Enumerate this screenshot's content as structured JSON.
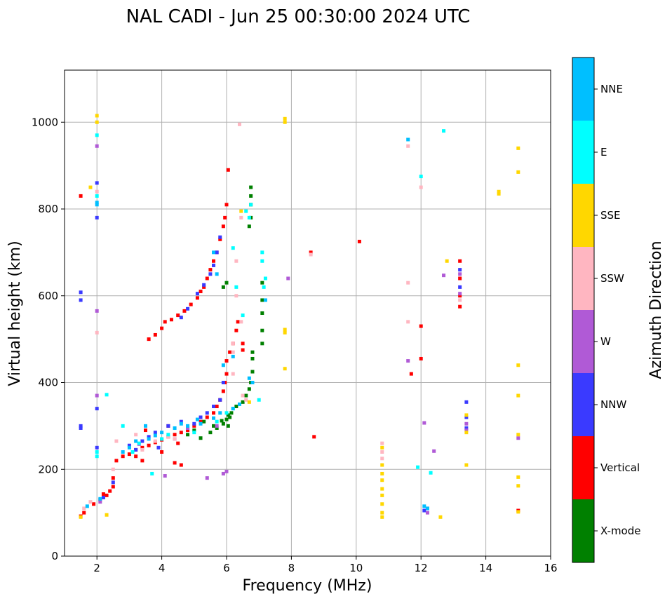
{
  "chart_data": {
    "type": "scatter",
    "title": "NAL CADI - Jun 25 00:30:00 2024 UTC",
    "xlabel": "Frequency (MHz)",
    "ylabel": "Virtual height (km)",
    "xlim": [
      1,
      16
    ],
    "ylim": [
      0,
      1120
    ],
    "xticks": [
      2,
      4,
      6,
      8,
      10,
      12,
      14,
      16
    ],
    "yticks": [
      0,
      200,
      400,
      600,
      800,
      1000
    ],
    "grid": true,
    "colorbar": {
      "label": "Azimuth Direction",
      "categories": [
        "X-mode",
        "Vertical",
        "NNW",
        "W",
        "SSW",
        "SSE",
        "E",
        "NNE"
      ],
      "colors": [
        "#008000",
        "#ff0000",
        "#3a3aff",
        "#b05ad6",
        "#ffb6c1",
        "#ffd700",
        "#00ffff",
        "#00bfff"
      ]
    },
    "series": [
      {
        "name": "X-mode",
        "points": [
          [
            5.2,
            272
          ],
          [
            5.5,
            285
          ],
          [
            5.7,
            295
          ],
          [
            5.9,
            305
          ],
          [
            6.0,
            315
          ],
          [
            6.15,
            330
          ],
          [
            6.3,
            345
          ],
          [
            6.5,
            355
          ],
          [
            6.6,
            370
          ],
          [
            6.7,
            385
          ],
          [
            6.75,
            400
          ],
          [
            6.8,
            425
          ],
          [
            6.8,
            455
          ],
          [
            6.8,
            470
          ],
          [
            5.9,
            620
          ],
          [
            6.0,
            630
          ],
          [
            6.7,
            760
          ],
          [
            6.75,
            780
          ],
          [
            6.75,
            810
          ],
          [
            6.75,
            830
          ],
          [
            6.75,
            850
          ],
          [
            7.1,
            490
          ],
          [
            7.1,
            520
          ],
          [
            7.1,
            560
          ],
          [
            7.1,
            590
          ],
          [
            7.1,
            630
          ],
          [
            5.6,
            300
          ],
          [
            5.0,
            290
          ],
          [
            4.8,
            280
          ],
          [
            5.3,
            310
          ],
          [
            6.05,
            325
          ],
          [
            5.85,
            312
          ],
          [
            6.05,
            300
          ],
          [
            6.1,
            320
          ]
        ]
      },
      {
        "name": "Vertical",
        "points": [
          [
            1.5,
            92
          ],
          [
            1.6,
            100
          ],
          [
            1.9,
            120
          ],
          [
            2.1,
            130
          ],
          [
            2.3,
            140
          ],
          [
            2.4,
            150
          ],
          [
            2.5,
            160
          ],
          [
            2.5,
            180
          ],
          [
            2.6,
            220
          ],
          [
            2.8,
            230
          ],
          [
            3.0,
            235
          ],
          [
            3.2,
            245
          ],
          [
            3.4,
            250
          ],
          [
            3.6,
            255
          ],
          [
            3.8,
            262
          ],
          [
            4.0,
            268
          ],
          [
            4.2,
            275
          ],
          [
            4.4,
            280
          ],
          [
            4.6,
            285
          ],
          [
            4.8,
            290
          ],
          [
            5.0,
            300
          ],
          [
            5.2,
            310
          ],
          [
            5.4,
            320
          ],
          [
            5.6,
            330
          ],
          [
            5.7,
            345
          ],
          [
            5.8,
            360
          ],
          [
            5.9,
            380
          ],
          [
            5.95,
            400
          ],
          [
            6.0,
            420
          ],
          [
            6.0,
            450
          ],
          [
            6.1,
            470
          ],
          [
            6.2,
            490
          ],
          [
            6.3,
            520
          ],
          [
            6.35,
            540
          ],
          [
            3.6,
            500
          ],
          [
            3.8,
            510
          ],
          [
            4.0,
            525
          ],
          [
            4.1,
            540
          ],
          [
            4.3,
            545
          ],
          [
            4.5,
            555
          ],
          [
            4.7,
            565
          ],
          [
            4.9,
            580
          ],
          [
            5.1,
            595
          ],
          [
            5.2,
            610
          ],
          [
            5.3,
            620
          ],
          [
            5.4,
            640
          ],
          [
            5.5,
            660
          ],
          [
            5.6,
            680
          ],
          [
            5.7,
            700
          ],
          [
            5.8,
            730
          ],
          [
            5.9,
            760
          ],
          [
            5.95,
            780
          ],
          [
            6.0,
            810
          ],
          [
            6.05,
            890
          ],
          [
            3.2,
            230
          ],
          [
            3.4,
            220
          ],
          [
            4.5,
            260
          ],
          [
            4.0,
            240
          ],
          [
            1.5,
            830
          ],
          [
            8.7,
            275
          ],
          [
            8.6,
            700
          ],
          [
            10.1,
            725
          ],
          [
            12.0,
            530
          ],
          [
            12.0,
            455
          ],
          [
            11.7,
            420
          ],
          [
            13.2,
            680
          ],
          [
            13.2,
            640
          ],
          [
            13.2,
            600
          ],
          [
            13.2,
            575
          ],
          [
            15.0,
            105
          ],
          [
            6.5,
            490
          ],
          [
            6.5,
            475
          ],
          [
            4.6,
            210
          ],
          [
            4.4,
            215
          ],
          [
            2.2,
            143
          ],
          [
            3.5,
            290
          ],
          [
            4.2,
            300
          ]
        ]
      },
      {
        "name": "NNW",
        "points": [
          [
            1.5,
            295
          ],
          [
            1.5,
            300
          ],
          [
            1.5,
            590
          ],
          [
            1.5,
            608
          ],
          [
            2.0,
            340
          ],
          [
            2.0,
            250
          ],
          [
            2.0,
            780
          ],
          [
            2.0,
            860
          ],
          [
            2.2,
            135
          ],
          [
            2.5,
            170
          ],
          [
            3.0,
            255
          ],
          [
            3.2,
            245
          ],
          [
            3.4,
            265
          ],
          [
            3.6,
            275
          ],
          [
            3.8,
            285
          ],
          [
            4.2,
            300
          ],
          [
            4.6,
            310
          ],
          [
            4.8,
            295
          ],
          [
            5.0,
            305
          ],
          [
            5.2,
            320
          ],
          [
            5.4,
            330
          ],
          [
            5.6,
            345
          ],
          [
            5.8,
            360
          ],
          [
            5.9,
            400
          ],
          [
            5.1,
            605
          ],
          [
            5.3,
            625
          ],
          [
            5.5,
            650
          ],
          [
            5.6,
            670
          ],
          [
            5.7,
            700
          ],
          [
            5.8,
            735
          ],
          [
            4.8,
            570
          ],
          [
            4.6,
            550
          ],
          [
            13.4,
            355
          ],
          [
            13.4,
            320
          ],
          [
            13.4,
            295
          ],
          [
            12.1,
            105
          ],
          [
            13.2,
            660
          ],
          [
            13.2,
            620
          ],
          [
            3.9,
            250
          ],
          [
            4.4,
            270
          ]
        ]
      },
      {
        "name": "W",
        "points": [
          [
            2.0,
            945
          ],
          [
            2.0,
            565
          ],
          [
            2.0,
            370
          ],
          [
            2.1,
            125
          ],
          [
            4.1,
            185
          ],
          [
            5.4,
            180
          ],
          [
            5.9,
            190
          ],
          [
            6.0,
            195
          ],
          [
            7.9,
            640
          ],
          [
            11.6,
            450
          ],
          [
            12.2,
            110
          ],
          [
            12.2,
            100
          ],
          [
            12.1,
            307
          ],
          [
            12.4,
            242
          ],
          [
            12.7,
            647
          ],
          [
            13.4,
            305
          ],
          [
            13.4,
            290
          ],
          [
            13.2,
            650
          ],
          [
            13.2,
            605
          ],
          [
            15.0,
            272
          ],
          [
            3.3,
            258
          ],
          [
            4.8,
            295
          ],
          [
            5.7,
            300
          ]
        ]
      },
      {
        "name": "SSW",
        "points": [
          [
            1.6,
            110
          ],
          [
            1.8,
            125
          ],
          [
            2.0,
            840
          ],
          [
            2.0,
            515
          ],
          [
            2.6,
            265
          ],
          [
            2.5,
            200
          ],
          [
            3.4,
            245
          ],
          [
            3.8,
            265
          ],
          [
            4.2,
            275
          ],
          [
            4.4,
            270
          ],
          [
            6.2,
            490
          ],
          [
            6.2,
            470
          ],
          [
            6.3,
            680
          ],
          [
            6.4,
            995
          ],
          [
            6.45,
            780
          ],
          [
            6.45,
            540
          ],
          [
            6.2,
            420
          ],
          [
            8.6,
            695
          ],
          [
            11.6,
            945
          ],
          [
            11.6,
            630
          ],
          [
            11.6,
            540
          ],
          [
            12.0,
            850
          ],
          [
            10.8,
            260
          ],
          [
            10.8,
            240
          ],
          [
            10.8,
            225
          ],
          [
            13.2,
            590
          ],
          [
            3.2,
            280
          ],
          [
            6.5,
            370
          ],
          [
            6.3,
            600
          ],
          [
            6.6,
            360
          ]
        ]
      },
      {
        "name": "SSE",
        "points": [
          [
            1.5,
            90
          ],
          [
            1.8,
            850
          ],
          [
            2.0,
            1000
          ],
          [
            2.0,
            1015
          ],
          [
            2.3,
            95
          ],
          [
            7.8,
            1000
          ],
          [
            7.8,
            1008
          ],
          [
            7.8,
            515
          ],
          [
            7.8,
            522
          ],
          [
            7.8,
            432
          ],
          [
            10.8,
            90
          ],
          [
            10.8,
            100
          ],
          [
            10.8,
            120
          ],
          [
            10.8,
            140
          ],
          [
            10.8,
            155
          ],
          [
            10.8,
            175
          ],
          [
            10.8,
            190
          ],
          [
            10.8,
            210
          ],
          [
            10.8,
            250
          ],
          [
            12.6,
            90
          ],
          [
            12.8,
            680
          ],
          [
            13.4,
            210
          ],
          [
            13.4,
            285
          ],
          [
            13.4,
            325
          ],
          [
            14.4,
            840
          ],
          [
            14.4,
            835
          ],
          [
            15.0,
            940
          ],
          [
            15.0,
            885
          ],
          [
            15.0,
            440
          ],
          [
            15.0,
            370
          ],
          [
            15.0,
            280
          ],
          [
            15.0,
            182
          ],
          [
            15.0,
            162
          ],
          [
            15.0,
            102
          ],
          [
            6.45,
            795
          ],
          [
            6.7,
            355
          ]
        ]
      },
      {
        "name": "E",
        "points": [
          [
            2.0,
            970
          ],
          [
            2.0,
            830
          ],
          [
            2.0,
            240
          ],
          [
            2.0,
            230
          ],
          [
            2.3,
            372
          ],
          [
            2.8,
            300
          ],
          [
            3.3,
            260
          ],
          [
            3.7,
            190
          ],
          [
            4.0,
            270
          ],
          [
            4.2,
            280
          ],
          [
            6.2,
            710
          ],
          [
            6.3,
            620
          ],
          [
            6.5,
            555
          ],
          [
            6.6,
            795
          ],
          [
            6.7,
            780
          ],
          [
            6.75,
            810
          ],
          [
            7.1,
            700
          ],
          [
            7.1,
            680
          ],
          [
            7.15,
            620
          ],
          [
            7.2,
            640
          ],
          [
            7.0,
            360
          ],
          [
            5.7,
            310
          ],
          [
            5.0,
            285
          ],
          [
            6.0,
            330
          ],
          [
            12.0,
            875
          ],
          [
            12.7,
            980
          ],
          [
            12.3,
            192
          ],
          [
            11.9,
            205
          ],
          [
            3.1,
            240
          ],
          [
            6.2,
            340
          ]
        ]
      },
      {
        "name": "NNE",
        "points": [
          [
            1.7,
            115
          ],
          [
            2.0,
            810
          ],
          [
            2.0,
            815
          ],
          [
            2.1,
            132
          ],
          [
            2.8,
            240
          ],
          [
            3.0,
            250
          ],
          [
            3.2,
            265
          ],
          [
            3.6,
            270
          ],
          [
            3.8,
            278
          ],
          [
            4.0,
            285
          ],
          [
            4.4,
            295
          ],
          [
            4.8,
            300
          ],
          [
            5.2,
            305
          ],
          [
            5.6,
            318
          ],
          [
            5.8,
            330
          ],
          [
            6.2,
            340
          ],
          [
            5.9,
            440
          ],
          [
            6.2,
            460
          ],
          [
            5.7,
            650
          ],
          [
            5.6,
            700
          ],
          [
            6.8,
            400
          ],
          [
            6.7,
            410
          ],
          [
            7.2,
            590
          ],
          [
            11.6,
            960
          ],
          [
            12.2,
            110
          ],
          [
            12.1,
            115
          ],
          [
            3.5,
            300
          ],
          [
            4.6,
            305
          ],
          [
            6.4,
            350
          ],
          [
            5.1,
            315
          ]
        ]
      }
    ]
  }
}
